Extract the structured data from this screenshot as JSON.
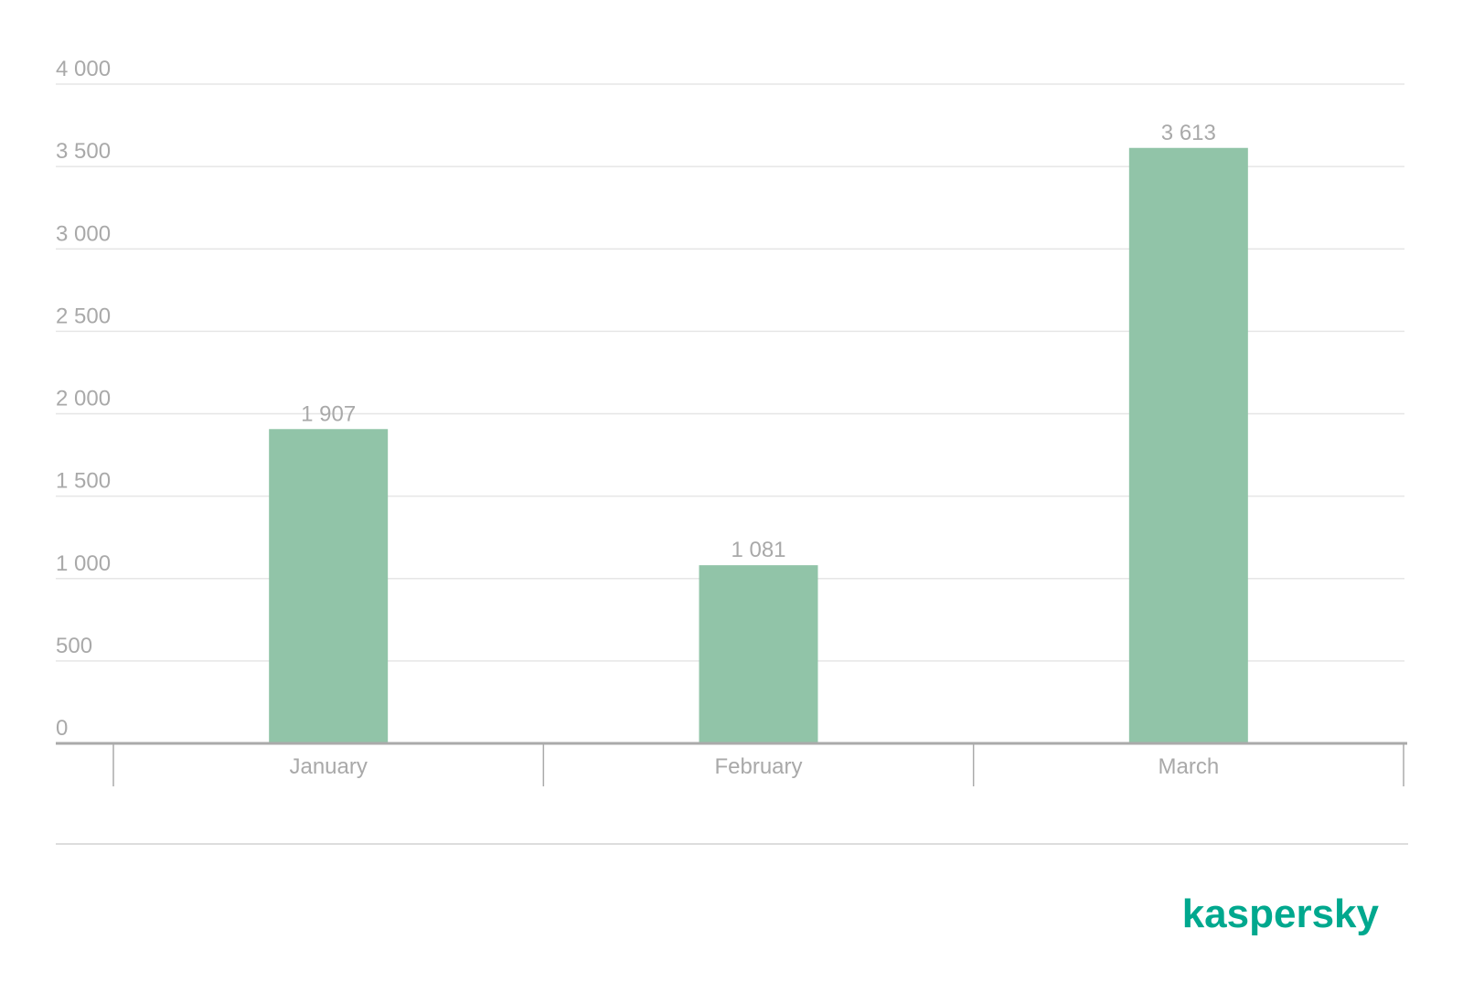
{
  "chart_data": {
    "type": "bar",
    "categories": [
      "January",
      "February",
      "March"
    ],
    "values": [
      1907,
      1081,
      3613
    ],
    "value_labels": [
      "1 907",
      "1 081",
      "3 613"
    ],
    "color": "#91c4a8",
    "ylim": [
      0,
      4000
    ],
    "yticks": [
      0,
      500,
      {
        "value": 1000,
        "label": "1 000"
      },
      {
        "value": 1500,
        "label": "1 500"
      },
      {
        "value": 2000,
        "label": "2 000"
      },
      {
        "value": 2500,
        "label": "2 500"
      },
      {
        "value": 3000,
        "label": "3 000"
      },
      {
        "value": 3500,
        "label": "3 500"
      },
      {
        "value": 4000,
        "label": "4 000"
      }
    ],
    "grid": true
  },
  "brand": "kaspersky"
}
